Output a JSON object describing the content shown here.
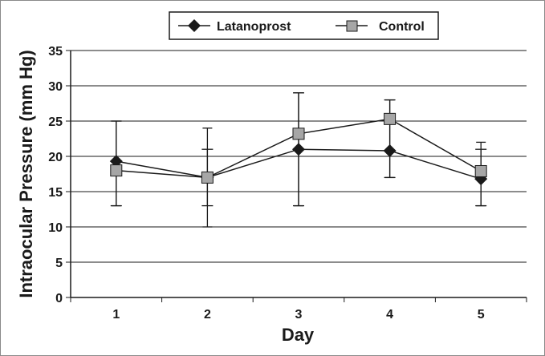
{
  "chart_data": {
    "type": "line",
    "title": "",
    "xlabel": "Day",
    "ylabel": "Intraocular Pressure (mm Hg)",
    "categories": [
      "1",
      "2",
      "3",
      "4",
      "5"
    ],
    "ylim": [
      0,
      35
    ],
    "yticks": [
      0,
      5,
      10,
      15,
      20,
      25,
      30,
      35
    ],
    "grid": "horizontal",
    "legend_position": "top",
    "series": [
      {
        "name": "Latanoprost",
        "marker": "diamond",
        "color": "#1a1a1a",
        "values": [
          19.3,
          17.0,
          21.0,
          20.8,
          16.8
        ],
        "error_low": [
          13,
          10,
          13,
          17,
          13
        ],
        "error_high": [
          25,
          24,
          29,
          28,
          22
        ]
      },
      {
        "name": "Control",
        "marker": "square",
        "color": "#a6a6a6",
        "values": [
          18.0,
          17.0,
          23.2,
          25.3,
          17.9
        ],
        "error_low": [
          13,
          13,
          13,
          17,
          13
        ],
        "error_high": [
          25,
          21,
          29,
          28,
          21
        ]
      }
    ]
  }
}
